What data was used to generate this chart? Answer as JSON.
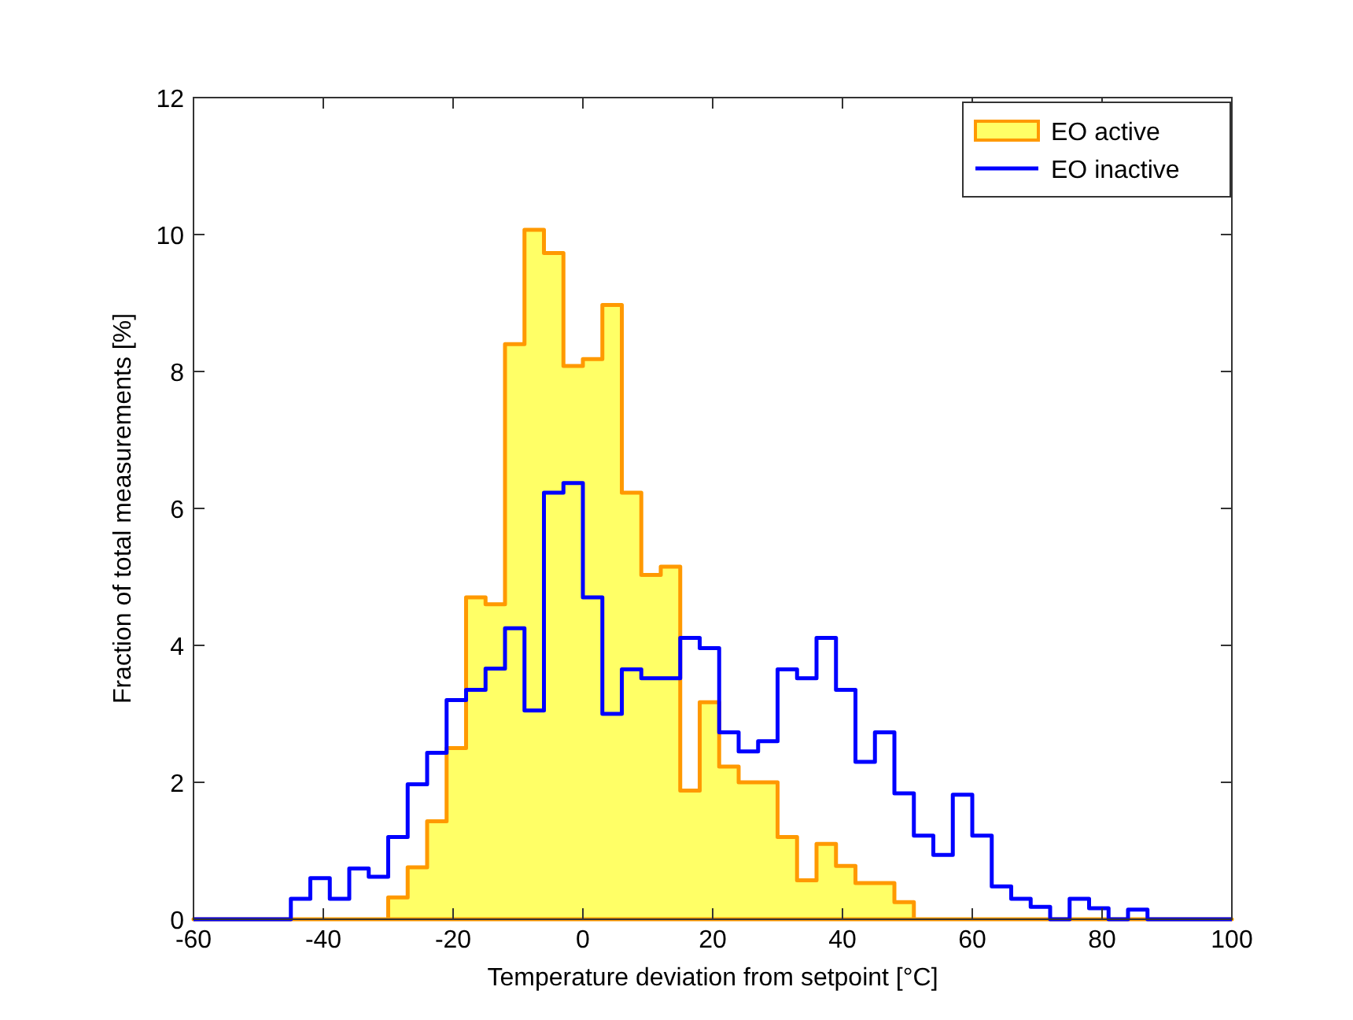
{
  "chart_data": {
    "type": "step",
    "xlabel": "Temperature deviation from setpoint [°C]",
    "ylabel": "Fraction of total measurements [%]",
    "x": [
      -60,
      -57,
      -54,
      -51,
      -48,
      -45,
      -42,
      -39,
      -36,
      -33,
      -30,
      -27,
      -24,
      -21,
      -18,
      -15,
      -12,
      -9,
      -6,
      -3,
      0,
      3,
      6,
      9,
      12,
      15,
      18,
      21,
      24,
      27,
      30,
      33,
      36,
      39,
      42,
      45,
      48,
      51,
      54,
      57,
      60,
      63,
      66,
      69,
      72,
      75,
      78,
      81,
      84,
      87,
      90,
      93,
      96,
      100
    ],
    "series": [
      {
        "name": "EO active",
        "type": "area",
        "color": "#ffff66",
        "values": [
          0,
          0,
          0,
          0,
          0,
          0,
          0,
          0,
          0,
          0,
          0.32,
          0.76,
          1.43,
          2.5,
          4.7,
          4.6,
          8.4,
          10.07,
          9.73,
          8.08,
          8.18,
          8.97,
          6.23,
          5.03,
          5.15,
          1.88,
          3.17,
          2.23,
          2.0,
          2.0,
          1.2,
          0.57,
          1.1,
          0.78,
          0.53,
          0.53,
          0.25,
          0,
          0,
          0,
          0,
          0,
          0,
          0,
          0,
          0,
          0,
          0,
          0,
          0,
          0,
          0,
          0,
          0
        ]
      },
      {
        "name": "EO inactive",
        "color": "#0000ff",
        "values": [
          0,
          0,
          0,
          0,
          0,
          0.3,
          0.6,
          0.3,
          0.74,
          0.62,
          1.2,
          1.97,
          2.43,
          3.2,
          3.35,
          3.66,
          4.25,
          3.05,
          6.23,
          6.37,
          4.7,
          3.0,
          3.65,
          3.52,
          3.52,
          4.11,
          3.96,
          2.73,
          2.45,
          2.6,
          3.65,
          3.52,
          4.11,
          3.35,
          2.3,
          2.73,
          1.84,
          1.22,
          0.94,
          1.82,
          1.22,
          0.48,
          0.3,
          0.18,
          0,
          0.3,
          0.16,
          0,
          0.14,
          0,
          0,
          0,
          0,
          0
        ]
      }
    ],
    "xlim": [
      -60,
      100
    ],
    "xticks": [
      -60,
      -40,
      -20,
      0,
      20,
      40,
      60,
      80,
      100
    ],
    "ylim": [
      0,
      12
    ],
    "yticks": [
      0,
      2,
      4,
      6,
      8,
      10,
      12
    ],
    "grid": false,
    "legend": "top right"
  }
}
